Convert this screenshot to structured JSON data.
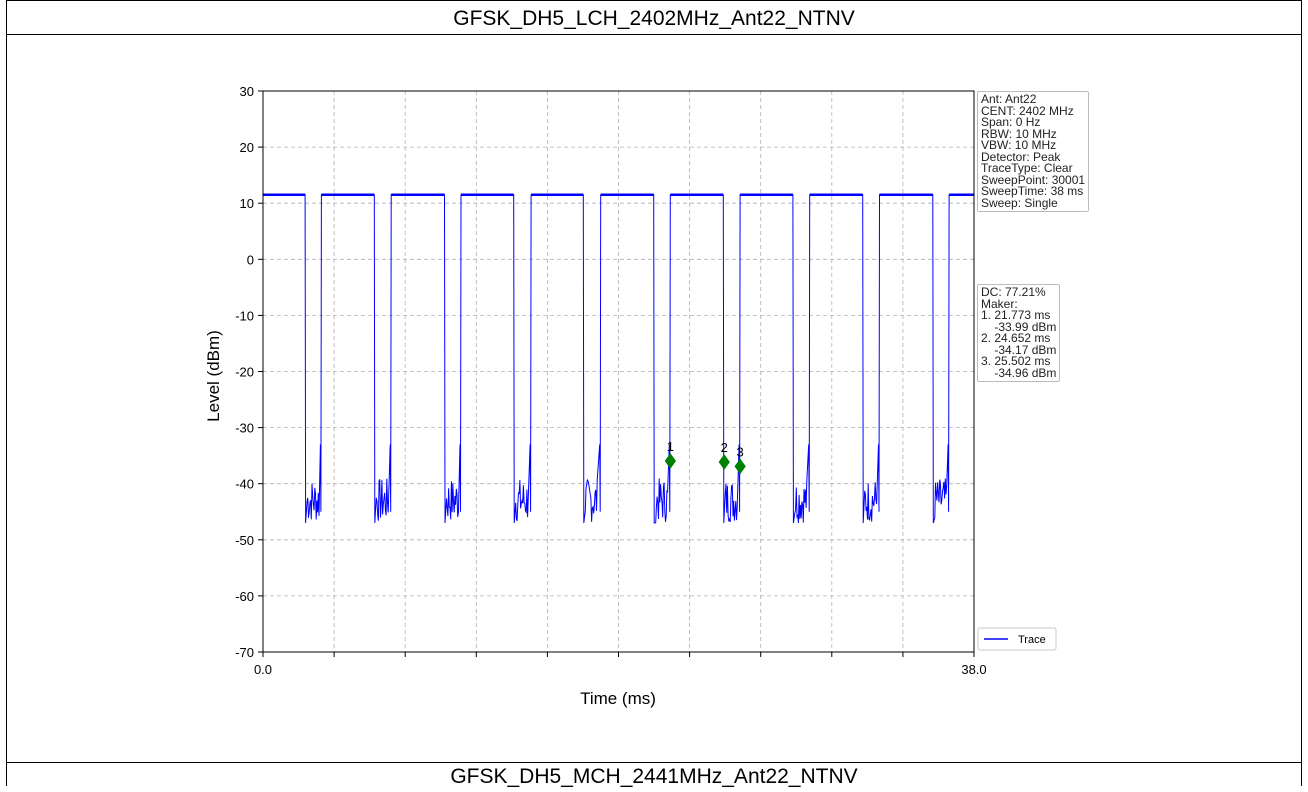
{
  "page": {
    "title": "GFSK_DH5_LCH_2402MHz_Ant22_NTNV",
    "next_title": "GFSK_DH5_MCH_2441MHz_Ant22_NTNV"
  },
  "settings_box": [
    "Ant: Ant22",
    "CENT: 2402 MHz",
    "Span: 0 Hz",
    "RBW: 10 MHz",
    "VBW: 10 MHz",
    "Detector: Peak",
    "TraceType: Clear",
    "SweepPoint: 30001",
    "SweepTime: 38 ms",
    "Sweep: Single"
  ],
  "marker_box": [
    "DC: 77.21%",
    "Maker:",
    "1. 21.773 ms",
    "    -33.99 dBm",
    "2. 24.652 ms",
    "    -34.17 dBm",
    "3. 25.502 ms",
    "    -34.96 dBm"
  ],
  "chart_data": {
    "type": "line",
    "xlabel": "Time (ms)",
    "ylabel": "Level (dBm)",
    "xlim": [
      0.0,
      38.0
    ],
    "ylim": [
      -70,
      30
    ],
    "x_tick_labels": [
      "0.0",
      "38.0"
    ],
    "y_ticks": [
      30,
      20,
      10,
      0,
      -10,
      -20,
      -30,
      -40,
      -50,
      -60,
      -70
    ],
    "grid": true,
    "legend": {
      "entries": [
        "Trace"
      ],
      "placement": "lower-right-outside"
    },
    "colors": {
      "trace": "#0000ff",
      "marker": "#008000",
      "grid": "#b0b0b0"
    },
    "series": [
      {
        "name": "Trace",
        "high_level_dBm": 11.5,
        "low_level_dBm": [
          -47,
          -39
        ],
        "on_intervals_ms": [
          [
            0,
            2.25
          ],
          [
            3.12,
            5.95
          ],
          [
            6.85,
            9.7
          ],
          [
            10.58,
            13.4
          ],
          [
            14.33,
            17.12
          ],
          [
            18.05,
            20.88
          ],
          [
            21.77,
            24.6
          ],
          [
            25.5,
            28.32
          ],
          [
            29.22,
            32.05
          ],
          [
            32.95,
            35.8
          ],
          [
            36.67,
            38.0
          ]
        ]
      }
    ],
    "markers": [
      {
        "label": "1",
        "x_ms": 21.773,
        "y_dBm": -33.99
      },
      {
        "label": "2",
        "x_ms": 24.652,
        "y_dBm": -34.17
      },
      {
        "label": "3",
        "x_ms": 25.502,
        "y_dBm": -34.96
      }
    ]
  }
}
